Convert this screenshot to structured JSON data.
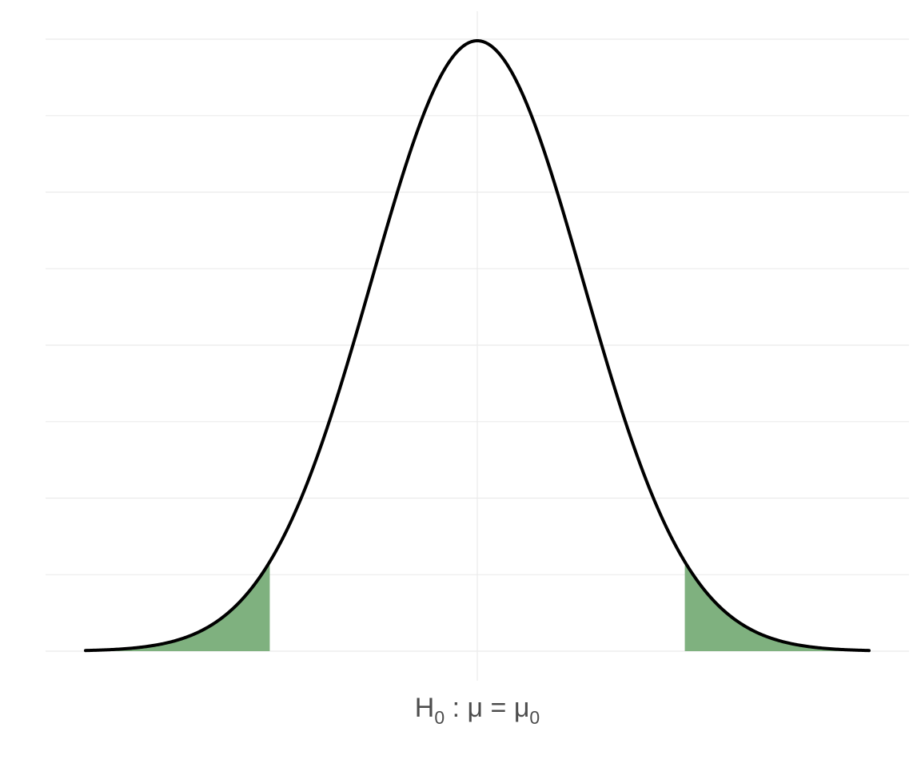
{
  "chart_data": {
    "type": "area",
    "distribution": "normal",
    "mean": 0,
    "sd": 1,
    "xlim": [
      -3.7,
      3.7
    ],
    "ylim": [
      0,
      0.4
    ],
    "critical_values": [
      -1.96,
      1.96
    ],
    "shaded_tails": [
      {
        "from": -3.7,
        "to": -1.96
      },
      {
        "from": 1.96,
        "to": 3.7
      }
    ],
    "x_tick": {
      "value": 0,
      "label_main": "H",
      "label_sub": "0",
      "label_mid": " : μ = μ",
      "label_sub2": "0"
    },
    "title": "",
    "xlabel": "",
    "ylabel": "",
    "grid": true,
    "colors": {
      "curve": "#000000",
      "tail_fill": "#7fb17f",
      "grid": "#ebebeb",
      "tick_text": "#4d4d4d"
    }
  }
}
